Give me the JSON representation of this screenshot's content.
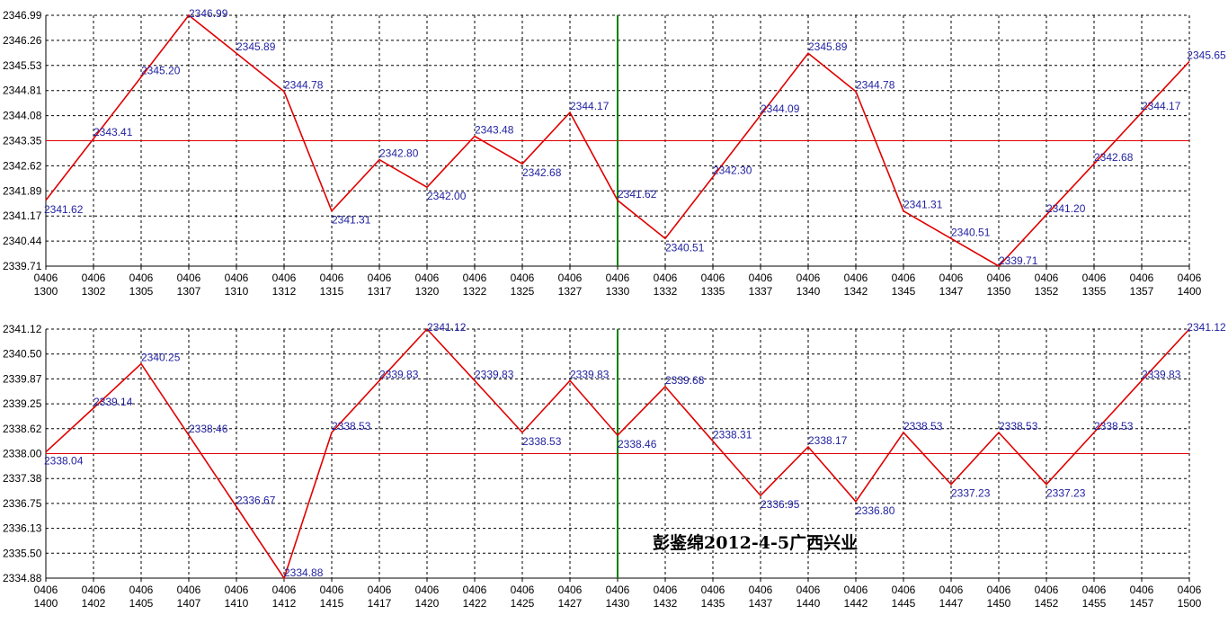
{
  "colors": {
    "line": "#e00000",
    "refline": "#e00000",
    "marker": "#008000",
    "label": "#1f1fa0",
    "grid": "#000000",
    "background": "#ffffff"
  },
  "caption": "彭鉴绵2012-4-5广西兴业",
  "chart_data": [
    {
      "type": "line",
      "title": "",
      "grid": true,
      "ylim": [
        2339.71,
        2346.99
      ],
      "yticks": [
        "2346.99",
        "2346.26",
        "2345.53",
        "2344.81",
        "2344.08",
        "2343.35",
        "2342.62",
        "2341.89",
        "2341.17",
        "2340.44",
        "2339.71"
      ],
      "reference_line": 2343.35,
      "marker_x_index": 12,
      "x_dates": [
        "0406",
        "0406",
        "0406",
        "0406",
        "0406",
        "0406",
        "0406",
        "0406",
        "0406",
        "0406",
        "0406",
        "0406",
        "0406",
        "0406",
        "0406",
        "0406",
        "0406",
        "0406",
        "0406",
        "0406",
        "0406",
        "0406",
        "0406",
        "0406",
        "0406"
      ],
      "x_times": [
        "1300",
        "1302",
        "1305",
        "1307",
        "1310",
        "1312",
        "1315",
        "1317",
        "1320",
        "1322",
        "1325",
        "1327",
        "1330",
        "1332",
        "1335",
        "1337",
        "1340",
        "1342",
        "1345",
        "1347",
        "1350",
        "1352",
        "1355",
        "1357",
        "1400"
      ],
      "points": [
        {
          "xi": 0,
          "y": 2341.62,
          "label": "2341.62"
        },
        {
          "xi": 1,
          "y": 2343.41,
          "label": "2343.41"
        },
        {
          "xi": 2,
          "y": 2345.2,
          "label": "2345.20"
        },
        {
          "xi": 3,
          "y": 2346.99,
          "label": "2346.99"
        },
        {
          "xi": 4,
          "y": 2345.89,
          "label": "2345.89"
        },
        {
          "xi": 5,
          "y": 2344.78,
          "label": "2344.78"
        },
        {
          "xi": 6,
          "y": 2341.31,
          "label": "2341.31"
        },
        {
          "xi": 7,
          "y": 2342.8,
          "label": "2342.80"
        },
        {
          "xi": 8,
          "y": 2342.0,
          "label": "2342.00"
        },
        {
          "xi": 9,
          "y": 2343.48,
          "label": "2343.48"
        },
        {
          "xi": 10,
          "y": 2342.68,
          "label": "2342.68"
        },
        {
          "xi": 11,
          "y": 2344.17,
          "label": "2344.17"
        },
        {
          "xi": 12,
          "y": 2341.62,
          "label": "2341.62"
        },
        {
          "xi": 13,
          "y": 2340.51,
          "label": "2340.51"
        },
        {
          "xi": 14,
          "y": 2342.3,
          "label": "2342.30"
        },
        {
          "xi": 15,
          "y": 2344.09,
          "label": "2344.09"
        },
        {
          "xi": 16,
          "y": 2345.89,
          "label": "2345.89"
        },
        {
          "xi": 17,
          "y": 2344.78,
          "label": "2344.78"
        },
        {
          "xi": 18,
          "y": 2341.31,
          "label": "2341.31"
        },
        {
          "xi": 19,
          "y": 2340.51,
          "label": "2340.51"
        },
        {
          "xi": 20,
          "y": 2339.71,
          "label": "2339.71"
        },
        {
          "xi": 21,
          "y": 2341.2,
          "label": "2341.20"
        },
        {
          "xi": 22,
          "y": 2342.68,
          "label": "2342.68"
        },
        {
          "xi": 23,
          "y": 2344.17,
          "label": "2344.17"
        },
        {
          "xi": 24,
          "y": 2345.65,
          "label": "2345.65"
        }
      ]
    },
    {
      "type": "line",
      "title": "",
      "grid": true,
      "ylim": [
        2334.88,
        2341.12
      ],
      "yticks": [
        "2341.12",
        "2340.50",
        "2339.87",
        "2339.25",
        "2338.62",
        "2338.00",
        "2337.38",
        "2336.75",
        "2336.13",
        "2335.50",
        "2334.88"
      ],
      "reference_line": 2338.0,
      "marker_x_index": 12,
      "x_dates": [
        "0406",
        "0406",
        "0406",
        "0406",
        "0406",
        "0406",
        "0406",
        "0406",
        "0406",
        "0406",
        "0406",
        "0406",
        "0406",
        "0406",
        "0406",
        "0406",
        "0406",
        "0406",
        "0406",
        "0406",
        "0406",
        "0406",
        "0406",
        "0406",
        "0406"
      ],
      "x_times": [
        "1400",
        "1402",
        "1405",
        "1407",
        "1410",
        "1412",
        "1415",
        "1417",
        "1420",
        "1422",
        "1425",
        "1427",
        "1430",
        "1432",
        "1435",
        "1437",
        "1440",
        "1442",
        "1445",
        "1447",
        "1450",
        "1452",
        "1455",
        "1457",
        "1500"
      ],
      "points": [
        {
          "xi": 0,
          "y": 2338.04,
          "label": "2338.04"
        },
        {
          "xi": 1,
          "y": 2339.14,
          "label": "2339.14"
        },
        {
          "xi": 2,
          "y": 2340.25,
          "label": "2340.25"
        },
        {
          "xi": 3,
          "y": 2338.46,
          "label": "2338.46"
        },
        {
          "xi": 4,
          "y": 2336.67,
          "label": "2336.67"
        },
        {
          "xi": 5,
          "y": 2334.88,
          "label": "2334.88"
        },
        {
          "xi": 6,
          "y": 2338.53,
          "label": "2338.53"
        },
        {
          "xi": 7,
          "y": 2339.83,
          "label": "2339.83"
        },
        {
          "xi": 8,
          "y": 2341.12,
          "label": "2341.12"
        },
        {
          "xi": 9,
          "y": 2339.83,
          "label": "2339.83"
        },
        {
          "xi": 10,
          "y": 2338.53,
          "label": "2338.53"
        },
        {
          "xi": 11,
          "y": 2339.83,
          "label": "2339.83"
        },
        {
          "xi": 12,
          "y": 2338.46,
          "label": "2338.46"
        },
        {
          "xi": 13,
          "y": 2339.68,
          "label": "2339.68"
        },
        {
          "xi": 14,
          "y": 2338.31,
          "label": "2338.31"
        },
        {
          "xi": 15,
          "y": 2336.95,
          "label": "2336.95"
        },
        {
          "xi": 16,
          "y": 2338.17,
          "label": "2338.17"
        },
        {
          "xi": 17,
          "y": 2336.8,
          "label": "2336.80"
        },
        {
          "xi": 18,
          "y": 2338.53,
          "label": "2338.53"
        },
        {
          "xi": 19,
          "y": 2337.23,
          "label": "2337.23"
        },
        {
          "xi": 20,
          "y": 2338.53,
          "label": "2338.53"
        },
        {
          "xi": 21,
          "y": 2337.23,
          "label": "2337.23"
        },
        {
          "xi": 22,
          "y": 2338.53,
          "label": "2338.53"
        },
        {
          "xi": 23,
          "y": 2339.83,
          "label": "2339.83"
        },
        {
          "xi": 24,
          "y": 2341.12,
          "label": "2341.12"
        }
      ]
    }
  ]
}
